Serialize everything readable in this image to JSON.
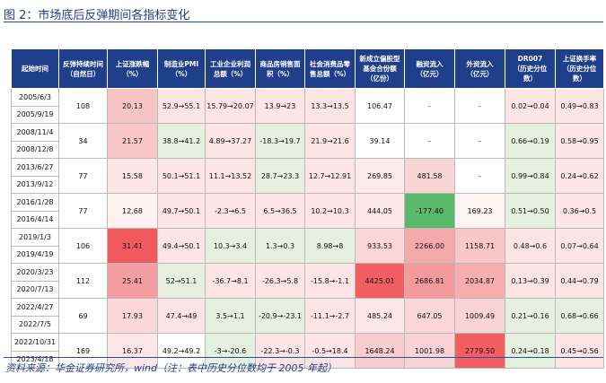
{
  "figure": {
    "title": "图 2：市场底后反弹期间各指标变化",
    "source": "资料来源：华金证券研究所，wind（注：表中历史分位数均于 2005 年起）"
  },
  "table": {
    "headers": [
      "起始时间",
      "反弹持续时间\n（自然日）",
      "上证涨跌幅\n（%）",
      "制造业PMI\n（%）",
      "工业企业利润\n总额（%）",
      "商品房销售面\n积（%）",
      "社会消费品零\n售总额（%）",
      "新成立偏股型\n基金合份额\n（亿份）",
      "融资流入\n（亿元）",
      "外资流入\n（亿元）",
      "DR007\n（历史分位\n数）",
      "上证换手率\n（历史分位\n数）"
    ],
    "rows": [
      {
        "start": "2005/6/3",
        "end": "2005/9/19",
        "days": "108",
        "sh": "20.13",
        "pmi": "52.9→55.1",
        "profit": "15.79→20.07",
        "house": "13.9→23",
        "retail": "13.3→13.5",
        "fund": "106.47",
        "margin": "-",
        "foreign": "-",
        "dr007": "0.02→0.04",
        "turnover": "0.49→0.83"
      },
      {
        "start": "2008/11/4",
        "end": "2008/12/8",
        "days": "34",
        "sh": "21.57",
        "pmi": "38.8→41.2",
        "profit": "4.89→37.27",
        "house": "-18.3→19.7",
        "retail": "21.9→21.6",
        "fund": "39.14",
        "margin": "-",
        "foreign": "-",
        "dr007": "0.66→0.19",
        "turnover": "0.58→0.95"
      },
      {
        "start": "2013/6/27",
        "end": "2013/9/12",
        "days": "77",
        "sh": "15.58",
        "pmi": "50.1→51.1",
        "profit": "11.1→13.52",
        "house": "28.7→23.3",
        "retail": "12.7→12.91",
        "fund": "269.85",
        "margin": "481.58",
        "foreign": "-",
        "dr007": "0.99→0.84",
        "turnover": "0.24→0.62"
      },
      {
        "start": "2016/1/28",
        "end": "2016/4/14",
        "days": "77",
        "sh": "12.68",
        "pmi": "49.7→50.1",
        "profit": "-2.3→6.5",
        "house": "6.5→36.5",
        "retail": "10.2→10.3",
        "fund": "444.05",
        "margin": "-177.40",
        "foreign": "169.23",
        "dr007": "0.51→0.50",
        "turnover": "0.36→0.5"
      },
      {
        "start": "2019/1/3",
        "end": "2019/4/19",
        "days": "106",
        "sh": "31.41",
        "pmi": "49.4→50.1",
        "profit": "10.3→3.4",
        "house": "1.3→0.3",
        "retail": "8.98→8",
        "fund": "933.53",
        "margin": "2266.00",
        "foreign": "1158.71",
        "dr007": "0.48→0.6",
        "turnover": "0.07→0.64"
      },
      {
        "start": "2020/3/23",
        "end": "2020/7/13",
        "days": "112",
        "sh": "25.41",
        "pmi": "52→51.1",
        "profit": "-36.7→8.1",
        "house": "-26.3→5.8",
        "retail": "-15.8→-1.1",
        "fund": "4425.01",
        "margin": "2686.81",
        "foreign": "2034.87",
        "dr007": "0.13→0.39",
        "turnover": "0.44→0.79"
      },
      {
        "start": "2022/4/27",
        "end": "2022/7/5",
        "days": "69",
        "sh": "17.93",
        "pmi": "47.4→49",
        "profit": "3.5→1.1",
        "house": "-20.9→-23.1",
        "retail": "-11.1→-2.7",
        "fund": "485.24",
        "margin": "647.05",
        "foreign": "1009.49",
        "dr007": "0.21→0.16",
        "turnover": "0.68→0.66"
      },
      {
        "start": "2022/10/31",
        "end": "2023/4/18",
        "days": "169",
        "sh": "16.37",
        "pmi": "49.2→49.2",
        "profit": "-3→-20.6",
        "house": "-22.3→-0.3",
        "retail": "-0.5→18.4",
        "fund": "1648.24",
        "margin": "1001.98",
        "foreign": "2779.50",
        "dr007": "0.24→0.18",
        "turnover": "0.45→0.56"
      }
    ],
    "cell_colors": [
      {
        "sh": "#f7c4c5",
        "pmi": "#fde5e6",
        "profit": "#fde5e6",
        "house": "#fde5e6",
        "retail": "#fde5e6",
        "fund": "#ffffff",
        "margin": "#ffffff",
        "foreign": "#ffffff",
        "dr007": "#fde5e6",
        "turnover": "#fde5e6"
      },
      {
        "sh": "#f8c8c9",
        "pmi": "#e6f0df",
        "profit": "#fde5e6",
        "house": "#e6f0df",
        "retail": "#fde5e6",
        "fund": "#ffffff",
        "margin": "#ffffff",
        "foreign": "#ffffff",
        "dr007": "#e6f0df",
        "turnover": "#fde5e6"
      },
      {
        "sh": "#fde4e5",
        "pmi": "#fde5e6",
        "profit": "#fde5e6",
        "house": "#e6f0df",
        "retail": "#fde5e6",
        "fund": "#fdeaea",
        "margin": "#fad5d6",
        "foreign": "#ffffff",
        "dr007": "#e6f0df",
        "turnover": "#fde5e6"
      },
      {
        "sh": "#fef1f1",
        "pmi": "#fde5e6",
        "profit": "#fde5e6",
        "house": "#fde5e6",
        "retail": "#fde5e6",
        "fund": "#fde8e8",
        "margin": "#5ab96b",
        "foreign": "#fef3f3",
        "dr007": "#e6f0df",
        "turnover": "#fde5e6"
      },
      {
        "sh": "#f05a5f",
        "pmi": "#fde5e6",
        "profit": "#e6f0df",
        "house": "#e6f0df",
        "retail": "#e6f0df",
        "fund": "#fbd6d7",
        "margin": "#f6a9ab",
        "foreign": "#f9c7c8",
        "dr007": "#fde5e6",
        "turnover": "#fde5e6"
      },
      {
        "sh": "#f49ea1",
        "pmi": "#e6f0df",
        "profit": "#fde5e6",
        "house": "#fde5e6",
        "retail": "#fde5e6",
        "fund": "#f25f63",
        "margin": "#f39a9c",
        "foreign": "#f6aeb0",
        "dr007": "#fde5e6",
        "turnover": "#fde5e6"
      },
      {
        "sh": "#fbd7d8",
        "pmi": "#fde5e6",
        "profit": "#e6f0df",
        "house": "#e6f0df",
        "retail": "#fde5e6",
        "fund": "#fde7e7",
        "margin": "#fbd6d7",
        "foreign": "#fad3d4",
        "dr007": "#e6f0df",
        "turnover": "#e6f0df"
      },
      {
        "sh": "#fde6e7",
        "pmi": "#ffffff",
        "profit": "#e6f0df",
        "house": "#fde5e6",
        "retail": "#fde5e6",
        "fund": "#f9cccd",
        "margin": "#fad3d4",
        "foreign": "#f25e62",
        "dr007": "#e6f0df",
        "turnover": "#fde5e6"
      }
    ]
  }
}
